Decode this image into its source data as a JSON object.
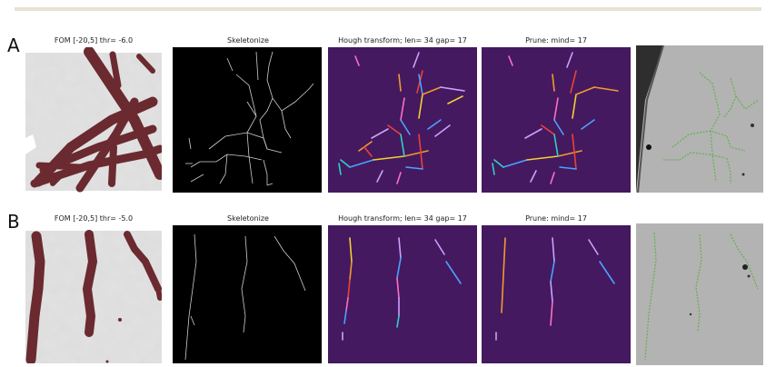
{
  "rows": [
    {
      "label": "A",
      "titles": [
        "FOM [-20,5] thr= -6.0",
        "Skeletonize",
        "Hough transform; len= 34 gap= 17",
        "Prune: mind= 17"
      ]
    },
    {
      "label": "B",
      "titles": [
        "FOM [-20,5] thr= -5.0",
        "Skeletonize",
        "Hough transform; len= 34 gap= 17",
        "Prune: mind= 17"
      ]
    }
  ],
  "colors": {
    "fom_background": "#dcdcdc",
    "fom_filament": "#6b2a30",
    "skeleton_background": "#000000",
    "skeleton_line": "#cfcfcf",
    "hough_background": "#44195f",
    "micrograph_background": "#b3b3b3",
    "overlay_green": "#5fb04a",
    "segment_palette": [
      "#e8423a",
      "#f29a2e",
      "#f2d034",
      "#4aa3ff",
      "#8b5cf6",
      "#ff6ec7",
      "#2ed1c8",
      "#c9a3ff",
      "#ffffff"
    ]
  }
}
